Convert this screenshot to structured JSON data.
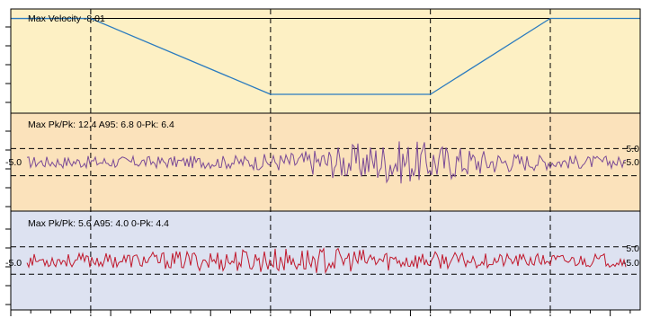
{
  "colors": {
    "panel_velocity_bg": "#fdf0c4",
    "panel_vert_bg": "#fbe2bb",
    "panel_lat_bg": "#dde2f1",
    "velocity_line": "#2b7bbf",
    "vert_line": "#7a4a96",
    "lat_line": "#c0182c",
    "frame": "#000000"
  },
  "chart_data": [
    {
      "type": "line",
      "name": "velocity-panel",
      "title": "Max Velocity -8.01",
      "grid": "vertical dashed markers",
      "x_markers": [
        4,
        13,
        21,
        27
      ],
      "xlim": [
        0,
        31.5
      ],
      "ylim": [
        -10,
        1
      ],
      "reference_line": 0,
      "x": [
        0,
        4,
        13,
        21,
        27,
        30.5,
        31.5
      ],
      "y": [
        0,
        0,
        -8.01,
        -8.01,
        0,
        0,
        0
      ]
    },
    {
      "type": "line",
      "name": "vertical-panel",
      "title": "Max Pk/Pk: 12.4 A95: 6.8  0-Pk: 6.4",
      "upper_limit_label": "5.0",
      "lower_limit_label": "-5.0",
      "limits": [
        5.0,
        -5.0
      ],
      "ylim": [
        -18,
        18
      ],
      "xlim": [
        0,
        31.5
      ],
      "x_markers": [
        4,
        13,
        21,
        27
      ],
      "max_pk_pk": 12.4,
      "a95": 6.8,
      "zero_pk": 6.4
    },
    {
      "type": "line",
      "name": "lateral-panel",
      "title": "Max Pk/Pk: 5.6 A95: 4.0  0-Pk: 4.4",
      "upper_limit_label": "5.0",
      "lower_limit_label": "-5.0",
      "limits": [
        5.0,
        -5.0
      ],
      "ylim": [
        -18,
        18
      ],
      "xlim": [
        0,
        31.5
      ],
      "x_markers": [
        4,
        13,
        21,
        27
      ],
      "max_pk_pk": 5.6,
      "a95": 4.0,
      "zero_pk": 4.4
    }
  ]
}
